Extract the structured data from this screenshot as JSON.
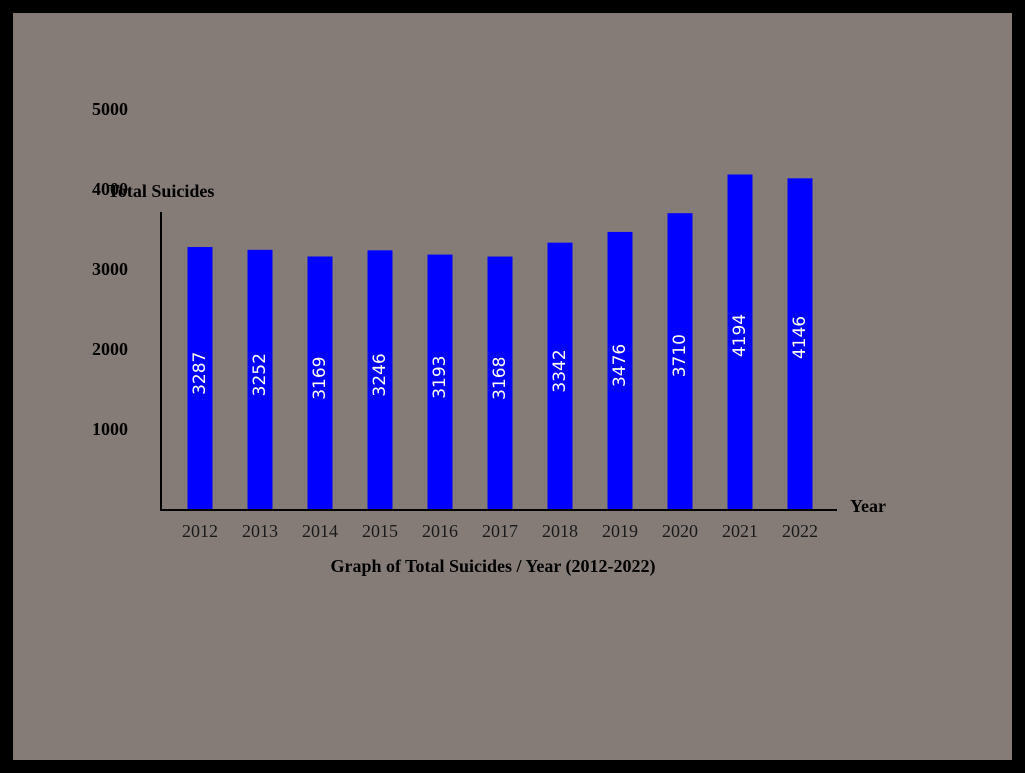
{
  "colors": {
    "border": "#000000",
    "background": "#857c78",
    "bar": "#0000ff",
    "value_label": "#ffffff",
    "axis": "#000000"
  },
  "chart_data": {
    "type": "bar",
    "title": "Graph of Total Suicides / Year (2012-2022)",
    "xlabel": "Year",
    "ylabel": "Total Suicides",
    "categories": [
      "2012",
      "2013",
      "2014",
      "2015",
      "2016",
      "2017",
      "2018",
      "2019",
      "2020",
      "2021",
      "2022"
    ],
    "values": [
      3287,
      3252,
      3169,
      3246,
      3193,
      3168,
      3342,
      3476,
      3710,
      4194,
      4146
    ],
    "yticks": [
      1000,
      2000,
      3000,
      4000,
      5000
    ],
    "grid": false,
    "legend": "none",
    "data_labels": "inside-vertical"
  }
}
